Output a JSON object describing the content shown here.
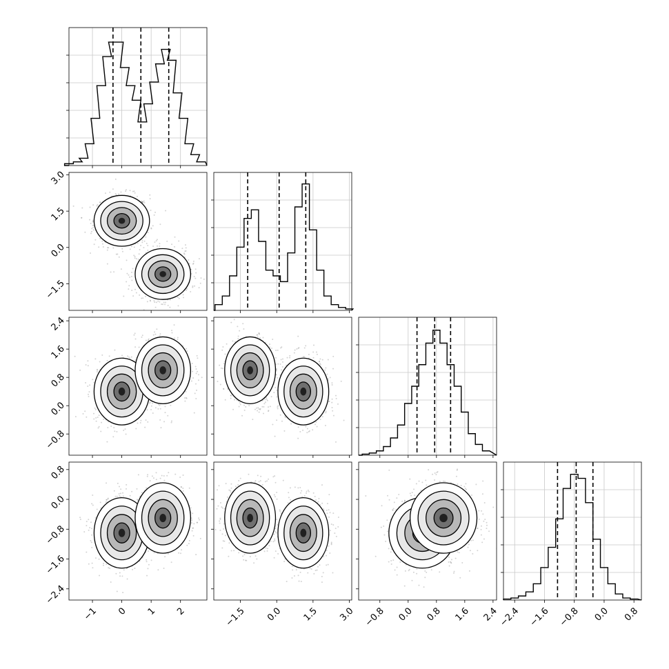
{
  "chart_data": {
    "type": "corner",
    "dimensions": 4,
    "axes": [
      {
        "range": [
          -1.8,
          2.9
        ],
        "ticks": [
          -1,
          0,
          1,
          2
        ],
        "tick_labels": [
          "−1",
          "0",
          "1",
          "2"
        ],
        "quantiles": [
          -0.3,
          0.65,
          1.6
        ]
      },
      {
        "range": [
          -2.6,
          3.1
        ],
        "ticks": [
          -1.5,
          0.0,
          1.5,
          3.0
        ],
        "tick_labels": [
          "−1.5",
          "0.0",
          "1.5",
          "3.0"
        ],
        "quantiles": [
          -1.2,
          0.1,
          1.2
        ]
      },
      {
        "range": [
          -1.4,
          2.5
        ],
        "ticks": [
          -0.8,
          0.0,
          0.8,
          1.6,
          2.4
        ],
        "tick_labels": [
          "−0.8",
          "0.0",
          "0.8",
          "1.6",
          "2.4"
        ],
        "quantiles": [
          0.25,
          0.75,
          1.2
        ]
      },
      {
        "range": [
          -2.7,
          1.0
        ],
        "ticks": [
          -2.4,
          -1.6,
          -0.8,
          0.0,
          0.8
        ],
        "tick_labels": [
          "−2.4",
          "−1.6",
          "−0.8",
          "0.0",
          "0.8"
        ],
        "quantiles": [
          -1.25,
          -0.75,
          -0.3
        ]
      }
    ],
    "histograms": [
      {
        "x": [
          -1.8,
          -1.5,
          -1.3,
          -1.1,
          -0.9,
          -0.7,
          -0.5,
          -0.3,
          -0.1,
          0.1,
          0.3,
          0.5,
          0.7,
          0.9,
          1.1,
          1.3,
          1.5,
          1.7,
          1.9,
          2.1,
          2.3,
          2.5,
          2.7
        ],
        "values": [
          0.5,
          1,
          2,
          6,
          13,
          22,
          30,
          34,
          34,
          27,
          22,
          18,
          12,
          17,
          23,
          28,
          32,
          29,
          20,
          13,
          6,
          3,
          1
        ],
        "ylim": [
          0,
          38
        ]
      },
      {
        "x": [
          -2.4,
          -2.1,
          -1.8,
          -1.5,
          -1.2,
          -0.9,
          -0.6,
          -0.3,
          0.0,
          0.3,
          0.6,
          0.9,
          1.2,
          1.5,
          1.8,
          2.1,
          2.4,
          2.7,
          3.0
        ],
        "values": [
          2,
          5,
          12,
          22,
          32,
          35,
          24,
          14,
          12,
          10,
          20,
          36,
          44,
          28,
          14,
          5,
          2,
          1,
          0.5
        ],
        "ylim": [
          0,
          48
        ]
      },
      {
        "x": [
          -1.2,
          -1.0,
          -0.8,
          -0.6,
          -0.4,
          -0.2,
          0.0,
          0.2,
          0.4,
          0.6,
          0.8,
          1.0,
          1.2,
          1.4,
          1.6,
          1.8,
          2.0,
          2.2
        ],
        "values": [
          0.5,
          1,
          2,
          4,
          8,
          14,
          24,
          32,
          42,
          52,
          58,
          52,
          42,
          32,
          20,
          10,
          5,
          2
        ],
        "ylim": [
          0,
          64
        ]
      },
      {
        "x": [
          -2.6,
          -2.4,
          -2.2,
          -2.0,
          -1.8,
          -1.6,
          -1.4,
          -1.2,
          -1.0,
          -0.8,
          -0.6,
          -0.4,
          -0.2,
          0.0,
          0.2,
          0.4,
          0.6,
          0.8
        ],
        "values": [
          0.5,
          1,
          2,
          4,
          8,
          16,
          26,
          40,
          55,
          62,
          60,
          48,
          30,
          16,
          8,
          3,
          1,
          0.5
        ],
        "ylim": [
          0,
          68
        ]
      }
    ],
    "components": [
      {
        "mean": [
          0.0,
          1.1,
          0.4,
          -0.9
        ],
        "std": [
          0.45,
          0.5,
          0.45,
          0.45
        ]
      },
      {
        "mean": [
          1.4,
          -1.1,
          1.0,
          -0.5
        ],
        "std": [
          0.45,
          0.5,
          0.45,
          0.45
        ]
      }
    ],
    "grid": true,
    "quantile_line_style": "dashed",
    "colors": {
      "line": "#000000",
      "grid": "#c8c8c8",
      "points": "#808080"
    }
  }
}
